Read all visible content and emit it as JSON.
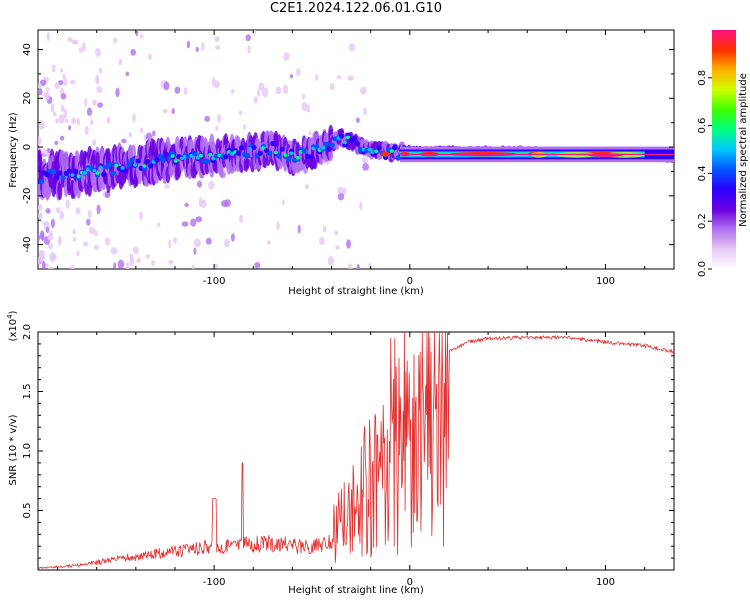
{
  "title": "C2E1.2024.122.06.01.G10",
  "chart_data": [
    {
      "type": "heatmap",
      "xlabel": "Height of straight line (km)",
      "ylabel": "Frequency (Hz)",
      "xlim": [
        -190,
        135
      ],
      "ylim": [
        -50,
        48
      ],
      "xticks": [
        -100,
        0,
        100
      ],
      "yticks": [
        -40,
        -20,
        0,
        20,
        40
      ],
      "ridge": {
        "x": [
          -190,
          -170,
          -150,
          -130,
          -110,
          -90,
          -70,
          -60,
          -50,
          -40,
          -35,
          -30,
          -20,
          -10,
          0,
          20,
          40,
          60,
          80,
          100,
          120,
          135
        ],
        "frequency": [
          -12,
          -11,
          -8,
          -6,
          -4,
          -3,
          -1,
          -4,
          -2,
          2,
          4,
          2,
          -1,
          -2,
          -2,
          -2,
          -2,
          -2,
          -3,
          -3,
          -3,
          -4
        ]
      },
      "colorbar": {
        "label": "Normalized spectral amplitude",
        "range": [
          0,
          1
        ],
        "ticks": [
          0.0,
          0.2,
          0.4,
          0.6,
          0.8
        ],
        "colormap": [
          "#ffffff",
          "#e6c8f5",
          "#b070f0",
          "#6a00e0",
          "#2a00ff",
          "#0055ff",
          "#00c8ff",
          "#00ff80",
          "#40ff00",
          "#d0ff00",
          "#ffb000",
          "#ff3000",
          "#ff1080"
        ]
      }
    },
    {
      "type": "line",
      "xlabel": "Height of straight line (km)",
      "ylabel": "SNR (10 * v/v)",
      "multiplier_label": "(x10",
      "multiplier_exp": "4",
      "multiplier_close": ")",
      "xlim": [
        -190,
        135
      ],
      "ylim": [
        0,
        20000
      ],
      "xticks": [
        -100,
        0,
        100
      ],
      "yticks": [
        0.5,
        1.0,
        1.5,
        2.0
      ],
      "color": "#e03030",
      "envelope": {
        "x": [
          -190,
          -170,
          -150,
          -130,
          -110,
          -90,
          -70,
          -50,
          -40,
          -30,
          -20,
          -10,
          -5,
          0,
          10,
          20,
          30,
          40,
          60,
          80,
          100,
          120,
          135
        ],
        "y": [
          200,
          500,
          1200,
          1800,
          2400,
          2800,
          3000,
          2500,
          3500,
          6000,
          9000,
          11000,
          12500,
          15000,
          16500,
          18500,
          19300,
          19600,
          19700,
          19700,
          19300,
          19000,
          18500
        ]
      }
    }
  ]
}
